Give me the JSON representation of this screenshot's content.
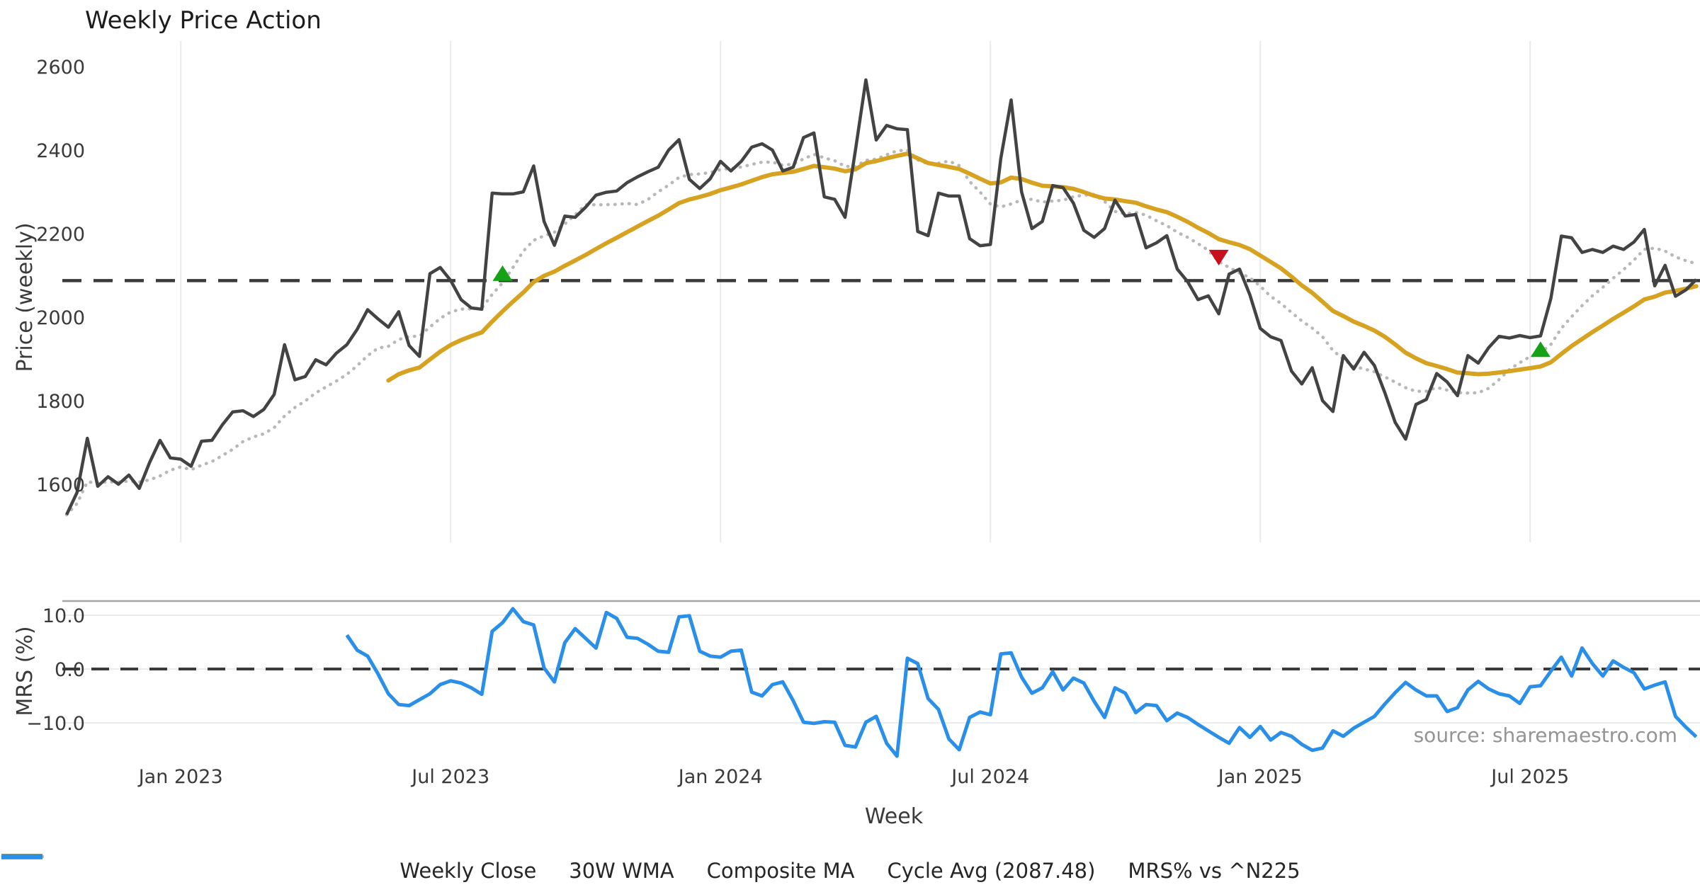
{
  "title": "Weekly Price Action",
  "xlabel": "Week",
  "watermark": "source: sharemaestro.com",
  "legend": {
    "items": [
      {
        "label": "Weekly Close",
        "color": "#474747",
        "style": "solid"
      },
      {
        "label": "30W WMA",
        "color": "#d6a21f",
        "style": "solid"
      },
      {
        "label": "Composite MA",
        "color": "#b8b8b8",
        "style": "dotted"
      },
      {
        "label": "Cycle Avg (2087.48)",
        "color": "#3a3a3a",
        "style": "dashed"
      },
      {
        "label": "MRS% vs ^N225",
        "color": "#2a8fe8",
        "style": "solid"
      }
    ]
  },
  "chart_data": [
    {
      "type": "line",
      "panel": "price",
      "title": "Weekly Price Action",
      "ylabel": "Price (weekly)",
      "x_unit": "week",
      "start_date": "2022-10-17",
      "freq_days": 7,
      "n_points": 158,
      "grid": "vertical-only",
      "ylim": [
        1462,
        2658
      ],
      "yticks": [
        {
          "v": 1600,
          "label": "1600"
        },
        {
          "v": 1800,
          "label": "1800"
        },
        {
          "v": 2000,
          "label": "2000"
        },
        {
          "v": 2200,
          "label": "2200"
        },
        {
          "v": 2400,
          "label": "2400"
        },
        {
          "v": 2600,
          "label": "2600"
        }
      ],
      "xticks": [
        {
          "week": 11,
          "label": "Jan 2023"
        },
        {
          "week": 37,
          "label": "Jul 2023"
        },
        {
          "week": 63,
          "label": "Jan 2024"
        },
        {
          "week": 89,
          "label": "Jul 2024"
        },
        {
          "week": 115,
          "label": "Jan 2025"
        },
        {
          "week": 141,
          "label": "Jul 2025"
        }
      ],
      "cycle_avg": {
        "name": "Cycle Avg",
        "value": 2087.48,
        "color": "#3a3a3a",
        "style": "dashed"
      },
      "series": [
        {
          "name": "Weekly Close",
          "color": "#434343",
          "style": "solid",
          "width": 4.5,
          "values": [
            1527,
            1580,
            1710,
            1595,
            1618,
            1600,
            1622,
            1590,
            1652,
            1705,
            1663,
            1660,
            1643,
            1703,
            1705,
            1742,
            1773,
            1776,
            1762,
            1779,
            1815,
            1934,
            1850,
            1858,
            1898,
            1886,
            1914,
            1934,
            1971,
            2018,
            1996,
            1976,
            2013,
            1932,
            1906,
            2104,
            2119,
            2088,
            2042,
            2022,
            2019,
            2297,
            2295,
            2295,
            2300,
            2362,
            2229,
            2172,
            2242,
            2239,
            2263,
            2292,
            2299,
            2302,
            2322,
            2336,
            2348,
            2359,
            2400,
            2425,
            2330,
            2308,
            2331,
            2373,
            2350,
            2373,
            2407,
            2415,
            2400,
            2350,
            2359,
            2430,
            2441,
            2288,
            2282,
            2239,
            2400,
            2568,
            2424,
            2459,
            2451,
            2449,
            2205,
            2195,
            2297,
            2290,
            2290,
            2188,
            2171,
            2174,
            2380,
            2520,
            2300,
            2212,
            2229,
            2315,
            2310,
            2273,
            2208,
            2191,
            2212,
            2280,
            2242,
            2246,
            2166,
            2178,
            2195,
            2115,
            2085,
            2042,
            2051,
            2008,
            2103,
            2115,
            2053,
            1973,
            1953,
            1944,
            1871,
            1840,
            1879,
            1800,
            1774,
            1908,
            1876,
            1916,
            1884,
            1819,
            1748,
            1708,
            1791,
            1803,
            1865,
            1845,
            1812,
            1908,
            1890,
            1927,
            1954,
            1950,
            1956,
            1951,
            1955,
            2045,
            2194,
            2190,
            2155,
            2162,
            2155,
            2170,
            2162,
            2180,
            2210,
            2075,
            2124,
            2050,
            2065,
            2090
          ]
        },
        {
          "name": "30W WMA",
          "color": "#d6a21f",
          "style": "solid",
          "width": 6,
          "derived_from": "Weekly Close",
          "method": "linear-weighted moving average, 30 weeks",
          "plot_from_week": 31
        },
        {
          "name": "Composite MA",
          "color": "#b8b8b8",
          "style": "dotted",
          "width": 4.5,
          "derived_from": "Weekly Close",
          "method": "10-week simple moving average (expanding at start)",
          "plot_from_week": 0
        }
      ],
      "markers": [
        {
          "week": 42,
          "price": 2102,
          "type": "buy",
          "shape": "triangle-up",
          "color": "#16a216"
        },
        {
          "week": 111,
          "price": 2146,
          "type": "sell",
          "shape": "triangle-down",
          "color": "#c8101c"
        },
        {
          "week": 142,
          "price": 1920,
          "type": "buy",
          "shape": "triangle-up",
          "color": "#16a216"
        }
      ]
    },
    {
      "type": "line",
      "panel": "oscillator",
      "ylabel": "MRS (%)",
      "grid": "horizontal-only",
      "ylim": [
        -17.0,
        12.6
      ],
      "yticks": [
        {
          "v": 10,
          "label": "10.0"
        },
        {
          "v": 0,
          "label": "0.0"
        },
        {
          "v": -10,
          "label": "−10.0"
        }
      ],
      "zero_line": {
        "value": 0.0,
        "color": "#3a3a3a",
        "style": "dashed"
      },
      "series": [
        {
          "name": "MRS% vs ^N225",
          "color": "#2a8fe8",
          "style": "solid",
          "width": 5,
          "start_week": 27,
          "values": [
            6.3,
            3.5,
            2.4,
            -0.9,
            -4.6,
            -6.6,
            -6.8,
            -5.7,
            -4.6,
            -2.9,
            -2.2,
            -2.6,
            -3.5,
            -4.7,
            7.0,
            8.6,
            11.2,
            8.8,
            8.2,
            0.2,
            -2.4,
            4.9,
            7.5,
            5.7,
            3.9,
            10.5,
            9.4,
            5.9,
            5.7,
            4.6,
            3.3,
            3.1,
            9.7,
            9.9,
            3.3,
            2.4,
            2.2,
            3.3,
            3.5,
            -4.3,
            -5.0,
            -2.9,
            -2.4,
            -5.9,
            -9.9,
            -10.1,
            -9.8,
            -9.9,
            -14.2,
            -14.5,
            -9.9,
            -8.8,
            -13.8,
            -16.2,
            2.0,
            1.0,
            -5.5,
            -7.5,
            -13.0,
            -15.0,
            -9.0,
            -8.0,
            -8.5,
            2.8,
            3.0,
            -1.5,
            -4.5,
            -3.5,
            -0.5,
            -3.9,
            -1.7,
            -2.6,
            -6.0,
            -9.0,
            -3.5,
            -4.5,
            -8.1,
            -6.6,
            -6.8,
            -9.6,
            -8.2,
            -9.0,
            -10.3,
            -11.5,
            -12.7,
            -13.8,
            -10.9,
            -12.7,
            -10.7,
            -13.2,
            -11.8,
            -12.5,
            -14.0,
            -15.1,
            -14.7,
            -11.5,
            -12.5,
            -11.0,
            -9.9,
            -8.8,
            -6.5,
            -4.4,
            -2.5,
            -3.9,
            -5.0,
            -5.0,
            -7.9,
            -7.2,
            -3.9,
            -2.3,
            -3.7,
            -4.6,
            -5.0,
            -6.4,
            -3.3,
            -3.1,
            -0.4,
            2.2,
            -1.3,
            3.9,
            1.0,
            -1.3,
            1.5,
            0.3,
            -0.7,
            -3.7,
            -3.0,
            -2.4,
            -8.8,
            -10.8,
            -12.6
          ]
        }
      ]
    }
  ]
}
